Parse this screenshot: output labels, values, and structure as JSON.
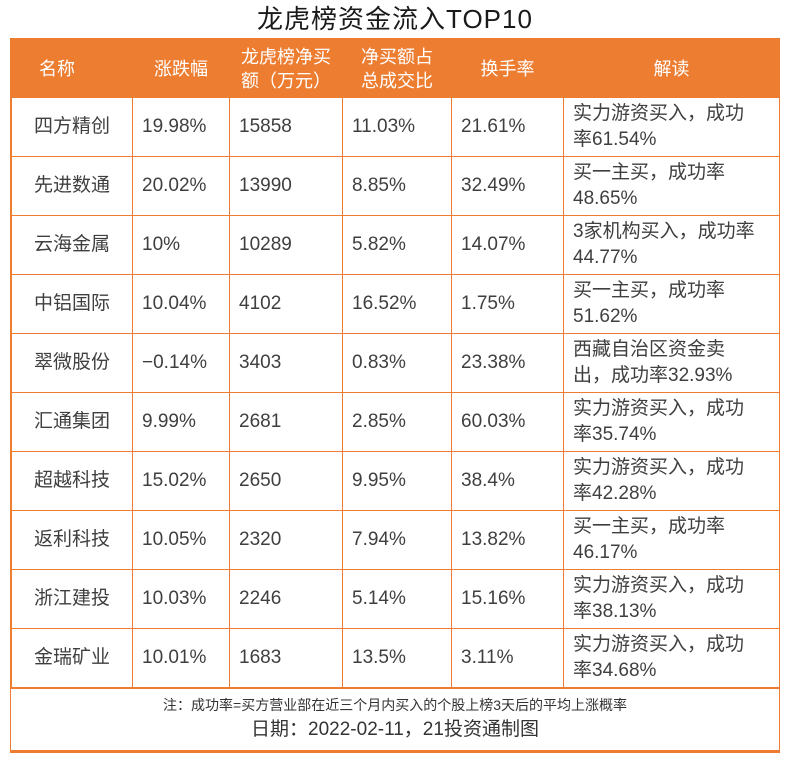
{
  "title": "龙虎榜资金流入TOP10",
  "theme": {
    "accent_orange": "#ED7D31",
    "header_text": "#FFFFFF",
    "body_text": "#3F3F3F"
  },
  "chart_data": {
    "type": "table",
    "title": "龙虎榜资金流入TOP10",
    "columns": [
      "名称",
      "涨跌幅",
      "龙虎榜净买额（万元）",
      "净买额占总成交比",
      "换手率",
      "解读"
    ],
    "rows": [
      [
        "四方精创",
        "19.98%",
        "15858",
        "11.03%",
        "21.61%",
        "实力游资买入，成功率61.54%"
      ],
      [
        "先进数通",
        "20.02%",
        "13990",
        "8.85%",
        "32.49%",
        "买一主买，成功率48.65%"
      ],
      [
        "云海金属",
        "10%",
        "10289",
        "5.82%",
        "14.07%",
        "3家机构买入，成功率44.77%"
      ],
      [
        "中铝国际",
        "10.04%",
        "4102",
        "16.52%",
        "1.75%",
        "买一主买，成功率51.62%"
      ],
      [
        "翠微股份",
        "−0.14%",
        "3403",
        "0.83%",
        "23.38%",
        "西藏自治区资金卖出，成功率32.93%"
      ],
      [
        "汇通集团",
        "9.99%",
        "2681",
        "2.85%",
        "60.03%",
        "实力游资买入，成功率35.74%"
      ],
      [
        "超越科技",
        "15.02%",
        "2650",
        "9.95%",
        "38.4%",
        "实力游资买入，成功率42.28%"
      ],
      [
        "返利科技",
        "10.05%",
        "2320",
        "7.94%",
        "13.82%",
        "买一主买，成功率46.17%"
      ],
      [
        "浙江建投",
        "10.03%",
        "2246",
        "5.14%",
        "15.16%",
        "实力游资买入，成功率38.13%"
      ],
      [
        "金瑞矿业",
        "10.01%",
        "1683",
        "13.5%",
        "3.11%",
        "实力游资买入，成功率34.68%"
      ]
    ]
  },
  "footer": {
    "note": "注：成功率=买方营业部在近三个月内买入的个股上榜3天后的平均上涨概率",
    "date_line": "日期：2022-02-11，21投资通制图"
  }
}
